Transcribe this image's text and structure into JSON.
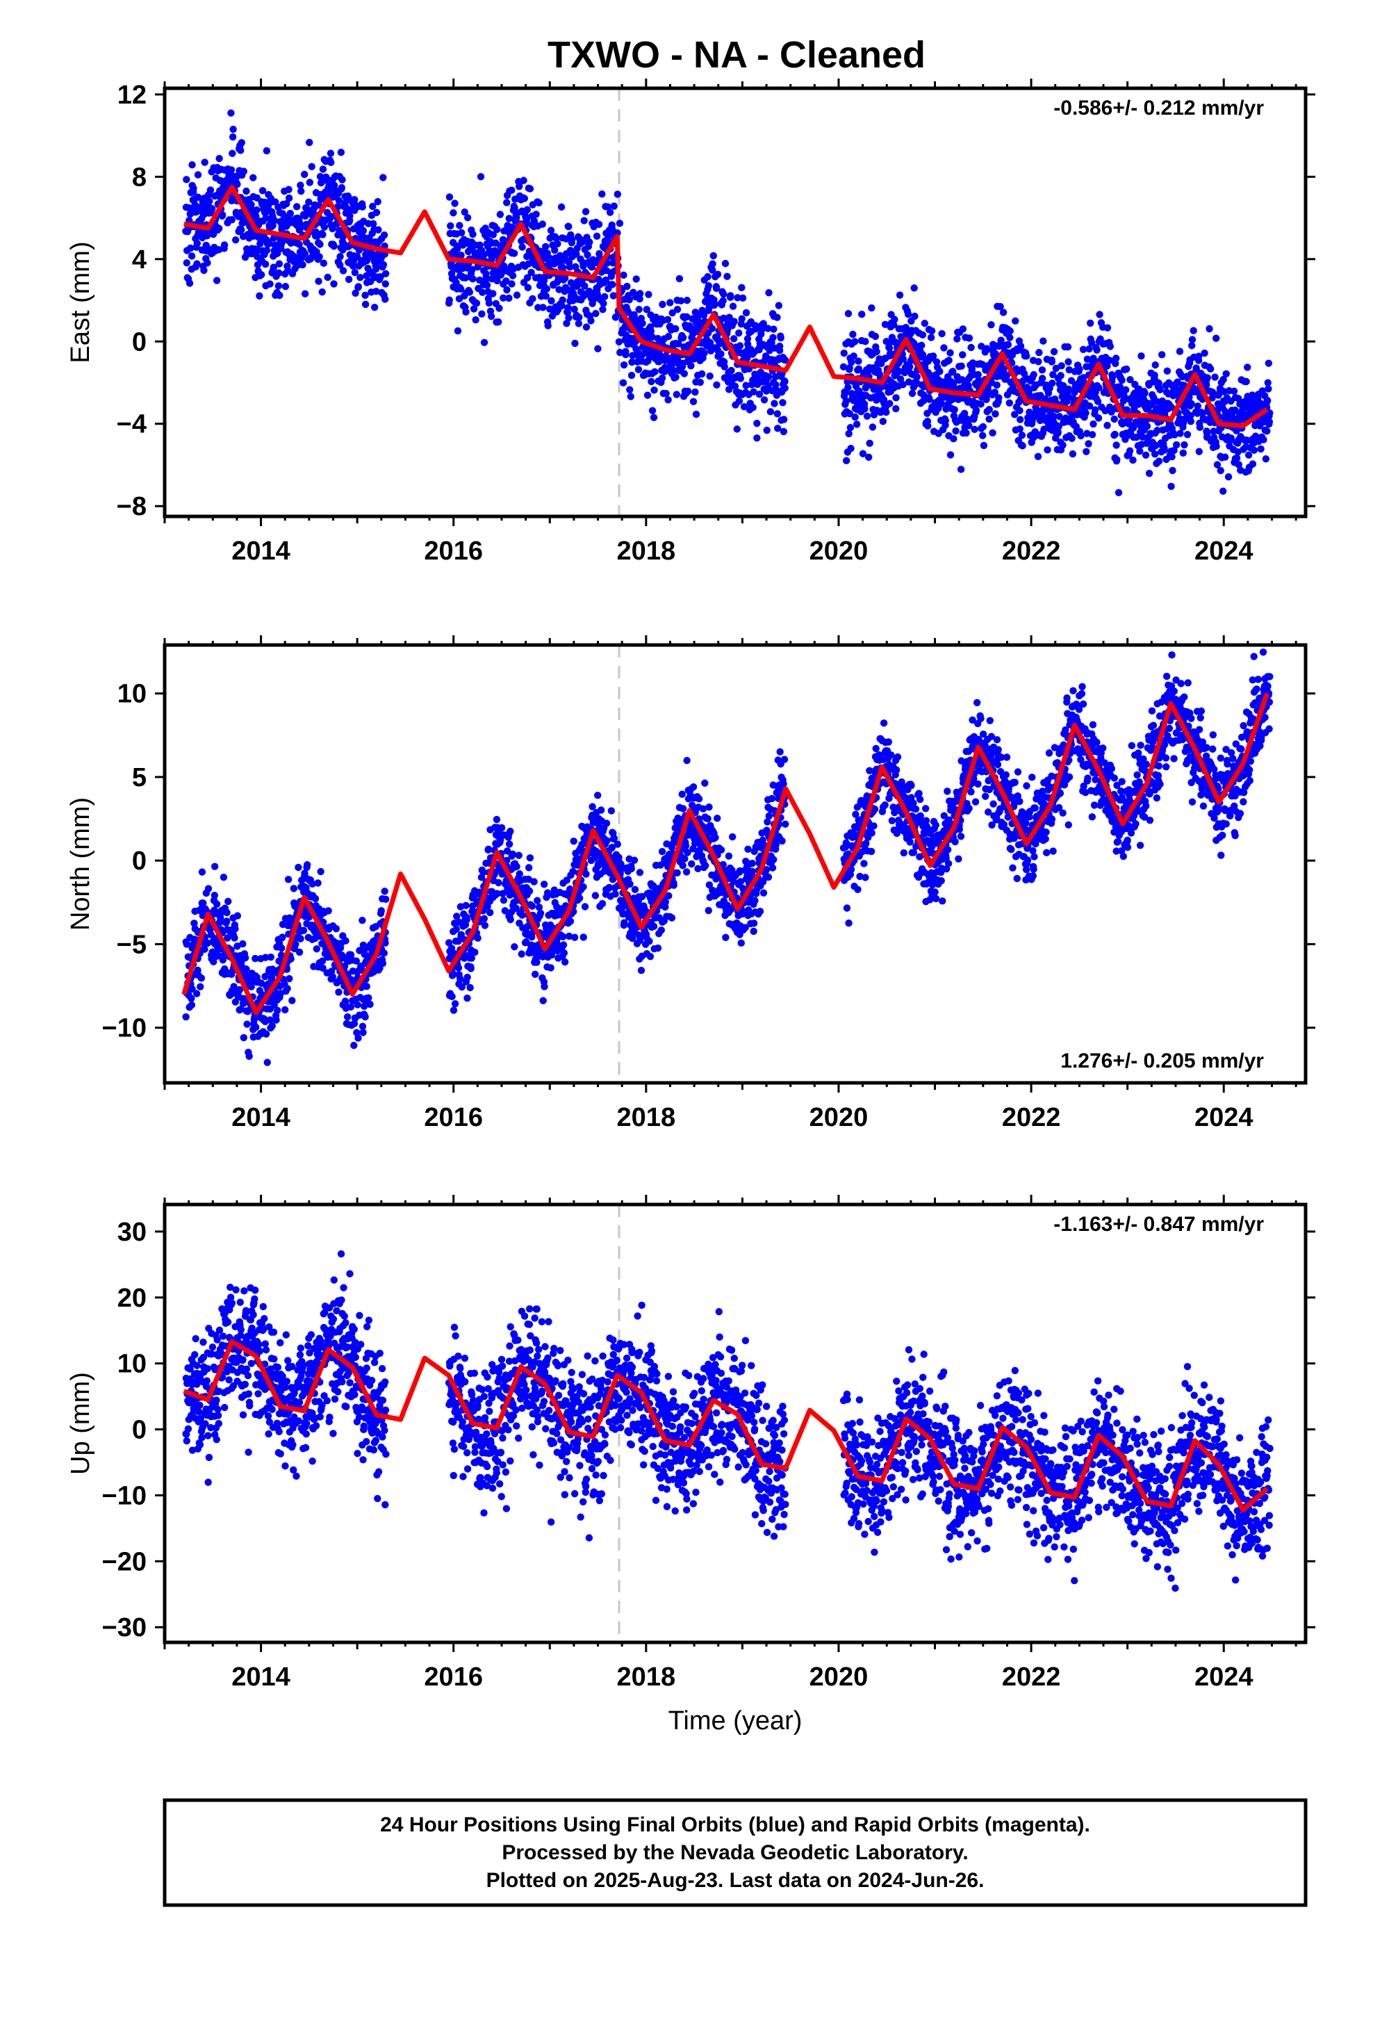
{
  "title": "TXWO  - NA - Cleaned",
  "xlabel": "Time (year)",
  "colors": {
    "points": "#0000ff",
    "fit": "#ff0000",
    "event_line": "#c8c8c8",
    "frame": "#000000"
  },
  "chart_data": [
    {
      "type": "scatter",
      "component": "east",
      "ylabel": "East (mm)",
      "rate": "-0.586+/- 0.212 mm/yr",
      "rate_position": "top-right",
      "xlim": [
        2013.0,
        2024.85
      ],
      "ylim": [
        -8.5,
        12.3
      ],
      "xticks": [
        2014,
        2016,
        2018,
        2020,
        2022,
        2024
      ],
      "xtick_labels": [
        "2014",
        "2016",
        "2018",
        "2020",
        "2022",
        "2024"
      ],
      "yticks": [
        -8,
        -4,
        0,
        4,
        8,
        12
      ],
      "ytick_labels": [
        "−8",
        "−4",
        "0",
        "4",
        "8",
        "12"
      ],
      "event_line_x": 2017.72,
      "fit": {
        "x": [
          2013.2,
          2013.45,
          2013.7,
          2013.95,
          2014.2,
          2014.45,
          2014.7,
          2014.95,
          2015.2,
          2015.45,
          2015.7,
          2015.95,
          2016.2,
          2016.45,
          2016.7,
          2016.95,
          2017.2,
          2017.45,
          2017.7,
          2017.72,
          2017.95,
          2018.2,
          2018.45,
          2018.7,
          2018.95,
          2019.2,
          2019.45,
          2019.7,
          2019.95,
          2020.2,
          2020.45,
          2020.7,
          2020.95,
          2021.2,
          2021.45,
          2021.7,
          2021.95,
          2022.2,
          2022.45,
          2022.7,
          2022.95,
          2023.2,
          2023.45,
          2023.7,
          2023.95,
          2024.2,
          2024.45
        ],
        "y": [
          5.7,
          5.5,
          7.5,
          5.4,
          5.2,
          5.0,
          6.9,
          4.8,
          4.5,
          4.3,
          6.3,
          4.0,
          3.9,
          3.7,
          5.7,
          3.4,
          3.3,
          3.1,
          5.1,
          1.6,
          0.0,
          -0.4,
          -0.6,
          1.3,
          -1.0,
          -1.2,
          -1.4,
          0.7,
          -1.7,
          -1.8,
          -2.0,
          0.1,
          -2.3,
          -2.5,
          -2.6,
          -0.6,
          -2.9,
          -3.1,
          -3.3,
          -1.1,
          -3.6,
          -3.6,
          -3.8,
          -1.6,
          -4.0,
          -4.1,
          -3.3
        ]
      }
    },
    {
      "type": "scatter",
      "component": "north",
      "ylabel": "North (mm)",
      "rate": "1.276+/- 0.205 mm/yr",
      "rate_position": "bottom-right",
      "xlim": [
        2013.0,
        2024.85
      ],
      "ylim": [
        -13.3,
        12.9
      ],
      "xticks": [
        2014,
        2016,
        2018,
        2020,
        2022,
        2024
      ],
      "xtick_labels": [
        "2014",
        "2016",
        "2018",
        "2020",
        "2022",
        "2024"
      ],
      "yticks": [
        -10,
        -5,
        0,
        5,
        10
      ],
      "ytick_labels": [
        "−10",
        "−5",
        "0",
        "5",
        "10"
      ],
      "event_line_x": 2017.72,
      "fit": {
        "x": [
          2013.2,
          2013.45,
          2013.7,
          2013.95,
          2014.2,
          2014.45,
          2014.7,
          2014.95,
          2015.2,
          2015.45,
          2015.7,
          2015.95,
          2016.2,
          2016.45,
          2016.7,
          2016.95,
          2017.2,
          2017.45,
          2017.7,
          2017.95,
          2018.2,
          2018.45,
          2018.7,
          2018.95,
          2019.2,
          2019.45,
          2019.7,
          2019.95,
          2020.2,
          2020.45,
          2020.7,
          2020.95,
          2021.2,
          2021.45,
          2021.7,
          2021.95,
          2022.2,
          2022.45,
          2022.7,
          2022.95,
          2023.2,
          2023.45,
          2023.7,
          2023.95,
          2024.2,
          2024.45
        ],
        "y": [
          -8.0,
          -3.2,
          -5.9,
          -9.1,
          -6.9,
          -2.2,
          -4.9,
          -8.0,
          -5.6,
          -0.8,
          -3.5,
          -6.6,
          -4.3,
          0.5,
          -2.2,
          -5.3,
          -3.0,
          1.8,
          -0.9,
          -4.0,
          -1.8,
          3.0,
          0.3,
          -2.9,
          -0.5,
          4.3,
          1.6,
          -1.6,
          0.8,
          5.6,
          2.9,
          -0.3,
          2.0,
          6.8,
          4.1,
          1.0,
          3.3,
          8.1,
          5.4,
          2.2,
          4.6,
          9.4,
          6.7,
          3.5,
          5.8,
          10.0
        ]
      }
    },
    {
      "type": "scatter",
      "component": "up",
      "ylabel": "Up (mm)",
      "rate": "-1.163+/- 0.847 mm/yr",
      "rate_position": "top-right",
      "xlim": [
        2013.0,
        2024.85
      ],
      "ylim": [
        -32.3,
        34.1
      ],
      "xticks": [
        2014,
        2016,
        2018,
        2020,
        2022,
        2024
      ],
      "xtick_labels": [
        "2014",
        "2016",
        "2018",
        "2020",
        "2022",
        "2024"
      ],
      "yticks": [
        -30,
        -20,
        -10,
        0,
        10,
        20,
        30
      ],
      "ytick_labels": [
        "−30",
        "−20",
        "−10",
        "0",
        "10",
        "20",
        "30"
      ],
      "event_line_x": 2017.72,
      "fit": {
        "x": [
          2013.2,
          2013.45,
          2013.7,
          2013.95,
          2014.2,
          2014.45,
          2014.7,
          2014.95,
          2015.2,
          2015.45,
          2015.7,
          2015.95,
          2016.2,
          2016.45,
          2016.7,
          2016.95,
          2017.2,
          2017.45,
          2017.7,
          2017.95,
          2018.2,
          2018.45,
          2018.7,
          2018.95,
          2019.2,
          2019.45,
          2019.7,
          2019.95,
          2020.2,
          2020.45,
          2020.7,
          2020.95,
          2021.2,
          2021.45,
          2021.7,
          2021.95,
          2022.2,
          2022.45,
          2022.7,
          2022.95,
          2023.2,
          2023.45,
          2023.7,
          2023.95,
          2024.2,
          2024.45
        ],
        "y": [
          5.8,
          4.5,
          13.3,
          11.1,
          3.5,
          2.8,
          12.1,
          9.4,
          2.2,
          1.5,
          10.8,
          8.2,
          0.9,
          0.2,
          9.5,
          6.9,
          -0.4,
          -1.1,
          8.2,
          5.6,
          -1.7,
          -2.4,
          4.4,
          2.3,
          -5.3,
          -5.9,
          2.9,
          -0.2,
          -7.1,
          -7.8,
          1.6,
          -1.4,
          -8.3,
          -9.0,
          0.3,
          -2.7,
          -9.6,
          -10.3,
          -0.9,
          -4.1,
          -10.9,
          -11.6,
          -1.7,
          -5.4,
          -12.2,
          -9.0
        ]
      }
    }
  ],
  "footer": {
    "lines": [
      "24 Hour Positions Using Final Orbits (blue) and Rapid Orbits (magenta).",
      "Processed by the Nevada Geodetic Laboratory.",
      "Plotted on 2025-Aug-23. Last data on 2024-Jun-26."
    ]
  }
}
